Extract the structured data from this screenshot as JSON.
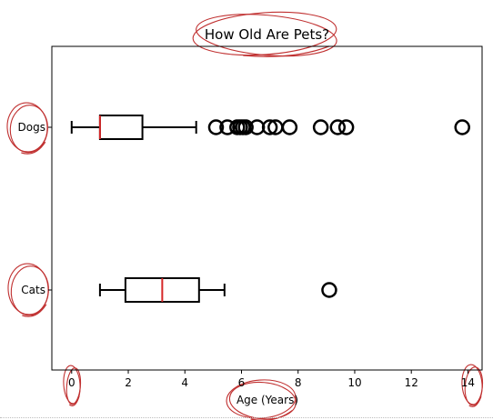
{
  "chart_data": {
    "type": "boxplot",
    "orientation": "horizontal",
    "title": "How Old Are Pets?",
    "xlabel": "Age (Years)",
    "ylabel": "",
    "xlim": [
      -0.7,
      14.5
    ],
    "xticks": [
      0,
      2,
      4,
      6,
      8,
      10,
      12,
      14
    ],
    "xtick_labels": [
      "0",
      "2",
      "4",
      "6",
      "8",
      "10",
      "12",
      "14"
    ],
    "grid": false,
    "categories": [
      "Dogs",
      "Cats"
    ],
    "boxes": [
      {
        "name": "Dogs",
        "whisker_low": 0.0,
        "q1": 1.0,
        "median": 1.0,
        "q3": 2.5,
        "whisker_high": 4.4,
        "outliers": [
          5.1,
          5.5,
          5.85,
          5.95,
          6.05,
          6.15,
          6.55,
          7.0,
          7.2,
          7.7,
          8.8,
          9.4,
          9.7,
          13.8
        ]
      },
      {
        "name": "Cats",
        "whisker_low": 1.0,
        "q1": 1.9,
        "median": 3.2,
        "q3": 4.5,
        "whisker_high": 5.4,
        "outliers": [
          9.1
        ]
      }
    ],
    "colors": {
      "box": "#000000",
      "median": "#d62728",
      "annotation": "#c03030"
    }
  }
}
